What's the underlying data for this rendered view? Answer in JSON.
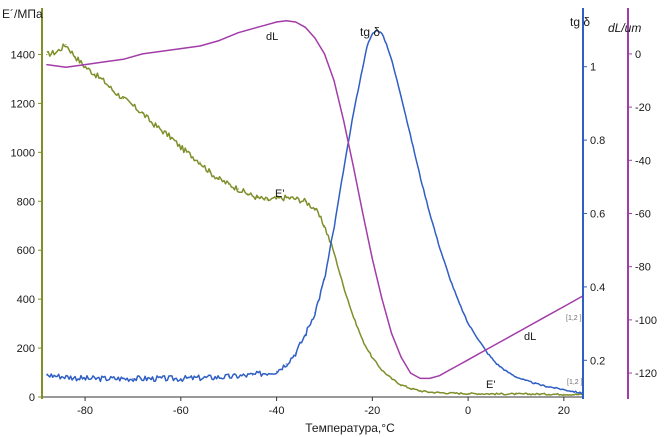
{
  "chart_data": {
    "type": "line",
    "title": "",
    "xlabel": "Температура,°C",
    "xlim": [
      -89,
      24
    ],
    "xticks": [
      -80,
      -60,
      -40,
      -20,
      0,
      20
    ],
    "axes": {
      "e_modulus": {
        "label": "E´/МПа",
        "ylim": [
          0,
          1500
        ],
        "ticks": [
          0,
          200,
          400,
          600,
          800,
          1000,
          1200,
          1400
        ],
        "color": "#7f8f2a"
      },
      "tan_delta": {
        "label": "tg δ",
        "ylim": [
          0.1,
          1.1
        ],
        "ticks": [
          0.2,
          0.4,
          0.6,
          0.8,
          1.0
        ],
        "color": "#2f5fc4"
      },
      "dl": {
        "label": "dL/um",
        "ylim": [
          -129,
          9
        ],
        "ticks": [
          0,
          -20,
          -40,
          -60,
          -80,
          -100,
          -120
        ],
        "color": "#a23ca8"
      }
    },
    "annotations": {
      "e_top": "E'",
      "e_bottom": "E'",
      "dl_top": "dL",
      "dl_bottom": "dL",
      "tan_top": "tg δ",
      "corner_top": "[1,2\n]",
      "corner_bottom": "[1,2\n]"
    },
    "series": [
      {
        "name": "E'",
        "axis": "e_modulus",
        "noise": 12,
        "x": [
          -88,
          -86,
          -84,
          -82,
          -80,
          -78,
          -76,
          -74,
          -72,
          -70,
          -68,
          -66,
          -64,
          -62,
          -60,
          -58,
          -56,
          -54,
          -52,
          -50,
          -48,
          -46,
          -44,
          -42,
          -40,
          -38,
          -36,
          -34,
          -32,
          -30,
          -28,
          -26,
          -24,
          -22,
          -20,
          -18,
          -16,
          -14,
          -12,
          -10,
          -8,
          -6,
          -4,
          -2,
          0,
          5,
          10,
          15,
          20,
          24
        ],
        "y": [
          1400,
          1410,
          1440,
          1390,
          1350,
          1320,
          1290,
          1250,
          1220,
          1190,
          1160,
          1120,
          1090,
          1060,
          1020,
          990,
          960,
          920,
          890,
          870,
          850,
          830,
          815,
          805,
          810,
          815,
          810,
          800,
          770,
          700,
          590,
          450,
          330,
          230,
          160,
          110,
          75,
          50,
          35,
          25,
          20,
          18,
          16,
          15,
          14,
          13,
          12,
          12,
          11,
          10
        ]
      },
      {
        "name": "tg δ",
        "axis": "tan_delta",
        "noise": 0.008,
        "x": [
          -88,
          -80,
          -70,
          -60,
          -50,
          -45,
          -40,
          -38,
          -36,
          -34,
          -32,
          -30,
          -28,
          -26,
          -24,
          -22,
          -21,
          -20,
          -19,
          -18,
          -17,
          -16,
          -14,
          -12,
          -10,
          -8,
          -6,
          -4,
          -2,
          0,
          2,
          4,
          6,
          8,
          10,
          12,
          14,
          16,
          18,
          20,
          22,
          24
        ],
        "y": [
          0.16,
          0.15,
          0.15,
          0.15,
          0.155,
          0.16,
          0.17,
          0.19,
          0.22,
          0.27,
          0.33,
          0.42,
          0.56,
          0.72,
          0.87,
          1.0,
          1.06,
          1.09,
          1.1,
          1.09,
          1.06,
          1.02,
          0.92,
          0.81,
          0.7,
          0.6,
          0.51,
          0.43,
          0.36,
          0.3,
          0.26,
          0.22,
          0.19,
          0.17,
          0.155,
          0.145,
          0.137,
          0.13,
          0.125,
          0.12,
          0.115,
          0.11
        ]
      },
      {
        "name": "dL",
        "axis": "dl",
        "noise": 0,
        "x": [
          -88,
          -84,
          -80,
          -76,
          -72,
          -68,
          -64,
          -60,
          -56,
          -52,
          -48,
          -44,
          -42,
          -40,
          -38,
          -36,
          -34,
          -32,
          -30,
          -28,
          -26,
          -24,
          -22,
          -20,
          -18,
          -16,
          -14,
          -12,
          -10,
          -8,
          -6,
          -4,
          -2,
          0,
          4,
          8,
          12,
          16,
          20,
          24
        ],
        "y": [
          -4,
          -5,
          -4,
          -3,
          -2,
          0,
          1,
          2,
          3,
          5,
          8,
          10,
          11,
          12,
          12.5,
          12,
          10,
          6,
          0,
          -10,
          -25,
          -42,
          -60,
          -77,
          -92,
          -105,
          -114,
          -120,
          -122,
          -122,
          -121,
          -119,
          -117,
          -115,
          -111,
          -107,
          -103,
          -99,
          -95,
          -91
        ]
      }
    ]
  }
}
